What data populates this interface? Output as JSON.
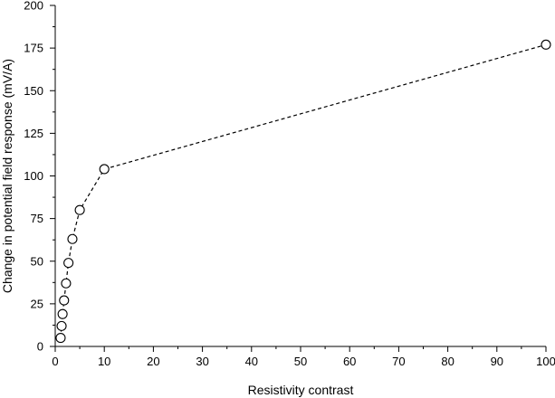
{
  "chart_data": {
    "type": "scatter",
    "title": "",
    "xlabel": "Resistivity contrast",
    "ylabel": "Change in potential field response (mV/A)",
    "xlim": [
      0,
      100
    ],
    "ylim": [
      0,
      200
    ],
    "x_ticks": [
      0,
      10,
      20,
      30,
      40,
      50,
      60,
      70,
      80,
      90,
      100
    ],
    "y_ticks": [
      0,
      25,
      50,
      75,
      100,
      125,
      150,
      175,
      200
    ],
    "grid": false,
    "line_style": "dashed",
    "marker": "open-circle",
    "series": [
      {
        "x": [
          1.1,
          1.3,
          1.5,
          1.8,
          2.2,
          2.7,
          3.5,
          5,
          10,
          100
        ],
        "y": [
          5,
          12,
          19,
          27,
          37,
          49,
          63,
          80,
          104,
          177
        ]
      }
    ]
  }
}
